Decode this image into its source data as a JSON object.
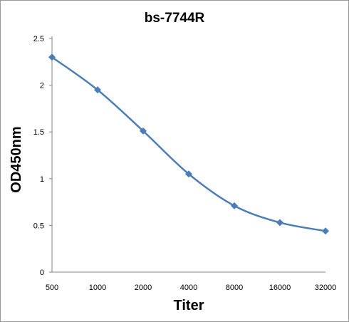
{
  "chart_data": {
    "type": "line",
    "title": "bs-7744R",
    "xlabel": "Titer",
    "ylabel": "OD450nm",
    "categories": [
      "500",
      "1000",
      "2000",
      "4000",
      "8000",
      "16000",
      "32000"
    ],
    "series": [
      {
        "values": [
          2.3,
          1.95,
          1.51,
          1.05,
          0.71,
          0.53,
          0.44
        ]
      }
    ],
    "yticks": [
      "0",
      "0.5",
      "1",
      "1.5",
      "2",
      "2.5"
    ],
    "ylim": [
      0,
      2.5
    ],
    "grid": false,
    "legend": "none",
    "line_color": "#4a7ebb"
  }
}
